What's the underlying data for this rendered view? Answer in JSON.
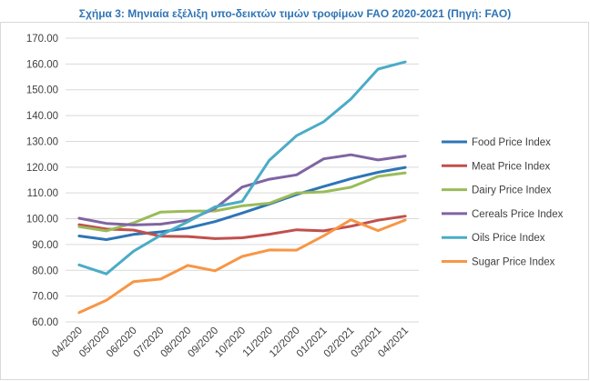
{
  "chart_data": {
    "type": "line",
    "title": "Σχήμα 3: Μηνιαία εξέλιξη υπο-δεικτών τιμών τροφίμων FAO 2020-2021 (Πηγή: FAO)",
    "xlabel": "",
    "ylabel": "",
    "ylim": [
      60,
      170
    ],
    "yticks": [
      "170.00",
      "160.00",
      "150.00",
      "140.00",
      "130.00",
      "120.00",
      "110.00",
      "100.00",
      "90.00",
      "80.00",
      "70.00",
      "60.00"
    ],
    "categories": [
      "04/2020",
      "05/2020",
      "06/2020",
      "07/2020",
      "08/2020",
      "09/2020",
      "10/2020",
      "11/2020",
      "12/2020",
      "01/2021",
      "02/2021",
      "03/2021",
      "04/2021"
    ],
    "grid": "horizontal",
    "legend_position": "right",
    "series": [
      {
        "name": "Food Price Index",
        "color": "#2e75b6",
        "values": [
          93.3,
          91.9,
          93.9,
          94.9,
          96.4,
          98.9,
          102.2,
          105.7,
          109.4,
          112.5,
          115.5,
          118.0,
          119.9
        ]
      },
      {
        "name": "Meat Price Index",
        "color": "#c0504d",
        "values": [
          97.7,
          96.0,
          95.6,
          93.2,
          93.1,
          92.3,
          92.6,
          94.0,
          95.7,
          95.3,
          97.1,
          99.4,
          101.0
        ]
      },
      {
        "name": "Dairy Price Index",
        "color": "#9bbb59",
        "values": [
          96.9,
          95.3,
          98.4,
          102.6,
          102.9,
          103.0,
          105.0,
          106.0,
          110.0,
          110.4,
          112.2,
          116.4,
          117.8
        ]
      },
      {
        "name": "Cereals Price Index",
        "color": "#8064a2",
        "values": [
          100.2,
          98.2,
          97.6,
          97.9,
          99.4,
          104.0,
          112.3,
          115.3,
          117.0,
          123.2,
          124.8,
          122.8,
          124.3
        ]
      },
      {
        "name": "Oils Price Index",
        "color": "#4bacc6",
        "values": [
          82.1,
          78.6,
          87.4,
          93.6,
          98.8,
          104.6,
          106.7,
          122.7,
          132.2,
          137.6,
          146.4,
          158.0,
          160.8
        ]
      },
      {
        "name": "Sugar Price Index",
        "color": "#f79646",
        "values": [
          63.6,
          68.4,
          75.6,
          76.6,
          81.9,
          79.8,
          85.4,
          87.9,
          87.8,
          93.4,
          99.6,
          95.4,
          99.5
        ]
      }
    ]
  }
}
